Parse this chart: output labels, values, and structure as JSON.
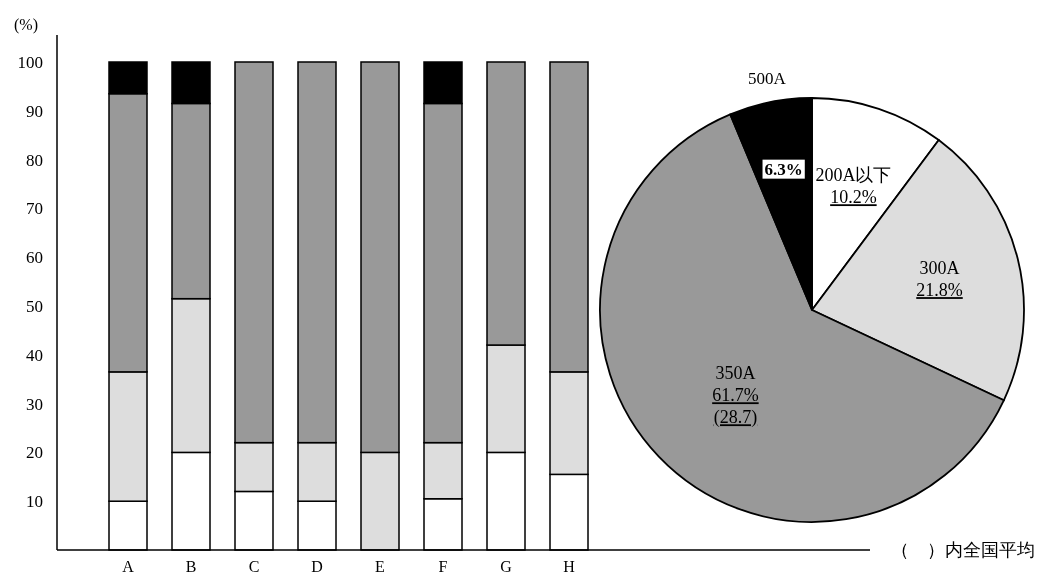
{
  "chart_data": [
    {
      "type": "bar",
      "stacked": true,
      "ylabel": "(%)",
      "categories": [
        "A",
        "B",
        "C",
        "D",
        "E",
        "F",
        "G",
        "H"
      ],
      "ylim": [
        0,
        100
      ],
      "yticks": [
        10,
        20,
        30,
        40,
        50,
        60,
        70,
        80,
        90,
        100
      ],
      "grid": false,
      "series": [
        {
          "color": "#ffffff",
          "values": [
            10,
            20,
            12,
            10,
            0,
            10.5,
            20,
            15.5
          ]
        },
        {
          "color": "#dddddd",
          "values": [
            26.5,
            31.5,
            10,
            12,
            20,
            11.5,
            22,
            21
          ]
        },
        {
          "color": "#999999",
          "values": [
            57,
            40,
            78,
            78,
            80,
            69.5,
            58,
            63.5
          ]
        },
        {
          "color": "#000000",
          "values": [
            6.5,
            8.5,
            0,
            0,
            0,
            8.5,
            0,
            0
          ]
        }
      ]
    },
    {
      "type": "pie",
      "categories": [
        "200A以下",
        "300A",
        "350A",
        "500A"
      ],
      "values": [
        10.2,
        21.8,
        61.7,
        6.3
      ],
      "colors": [
        "#ffffff",
        "#dddddd",
        "#999999",
        "#000000"
      ],
      "value_labels": [
        "10.2%",
        "21.8%",
        "61.7%",
        "6.3%"
      ],
      "annotations": [
        "(28.7)",
        "（　）内全国平均"
      ]
    }
  ]
}
